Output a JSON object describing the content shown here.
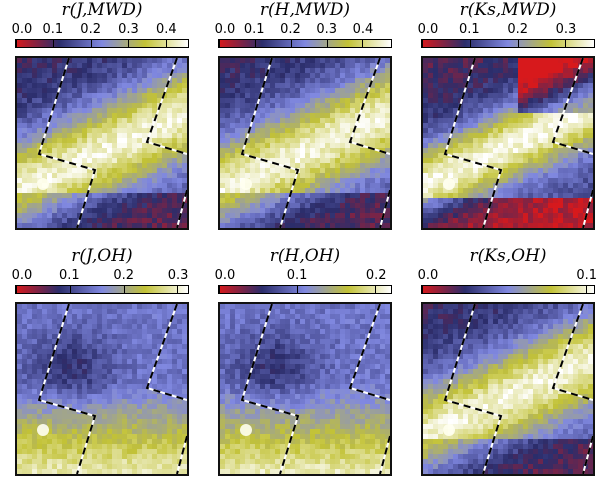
{
  "chart_data": [
    {
      "type": "heatmap",
      "title": "r(J,MWD)",
      "colorbar_ticks": [
        "0.0",
        "0.1",
        "0.2",
        "0.3",
        "0.4"
      ],
      "vmin": 0.0,
      "vmax": 0.46,
      "tick_values": [
        0.0,
        0.1,
        0.2,
        0.3,
        0.4
      ],
      "pattern": "diagonal-band-bright"
    },
    {
      "type": "heatmap",
      "title": "r(H,MWD)",
      "colorbar_ticks": [
        "0.0",
        "0.1",
        "0.2",
        "0.3",
        "0.4"
      ],
      "vmin": 0.0,
      "vmax": 0.48,
      "tick_values": [
        0.0,
        0.1,
        0.2,
        0.3,
        0.4
      ],
      "pattern": "diagonal-band-bright"
    },
    {
      "type": "heatmap",
      "title": "r(Ks,MWD)",
      "colorbar_ticks": [
        "0.0",
        "0.1",
        "0.2",
        "0.3"
      ],
      "vmin": 0.0,
      "vmax": 0.36,
      "tick_values": [
        0.0,
        0.1,
        0.2,
        0.3
      ],
      "pattern": "diagonal-band-red-corners"
    },
    {
      "type": "heatmap",
      "title": "r(J,OH)",
      "colorbar_ticks": [
        "0.0",
        "0.1",
        "0.2",
        "0.3"
      ],
      "vmin": 0.0,
      "vmax": 0.32,
      "tick_values": [
        0.0,
        0.1,
        0.2,
        0.3
      ],
      "pattern": "bottom-bright"
    },
    {
      "type": "heatmap",
      "title": "r(H,OH)",
      "colorbar_ticks": [
        "0.0",
        "0.1",
        "0.2"
      ],
      "vmin": 0.0,
      "vmax": 0.22,
      "tick_values": [
        0.0,
        0.1,
        0.2
      ],
      "pattern": "bottom-bright"
    },
    {
      "type": "heatmap",
      "title": "r(Ks,OH)",
      "colorbar_ticks": [
        "0.0",
        "0.1"
      ],
      "vmin": 0.0,
      "vmax": 0.105,
      "tick_values": [
        0.0,
        0.1
      ],
      "pattern": "diagonal-band-bright"
    }
  ],
  "colormap": [
    "#d7191c",
    "#2b2d6b",
    "#8088e0",
    "#c2c236",
    "#ffffff"
  ],
  "outline_style": "dashed black/white footprint boundary"
}
